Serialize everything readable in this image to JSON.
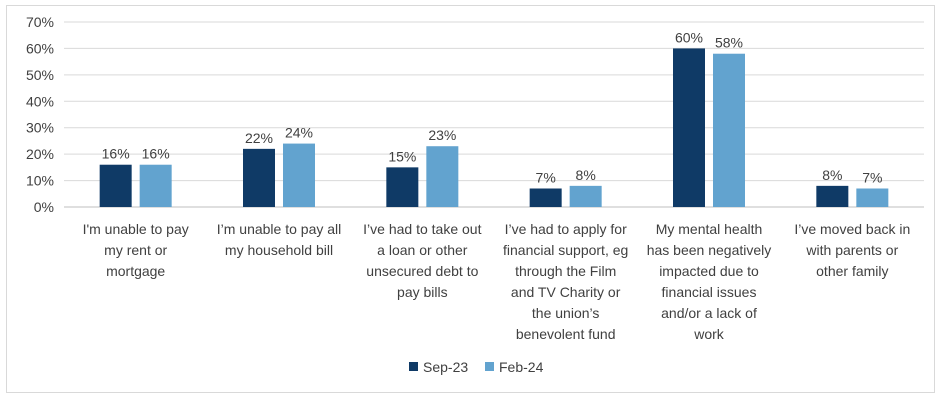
{
  "chart_data": {
    "type": "bar",
    "title": "",
    "xlabel": "",
    "ylabel": "",
    "ylim": [
      0,
      70
    ],
    "yticks": [
      "0%",
      "10%",
      "20%",
      "30%",
      "40%",
      "50%",
      "60%",
      "70%"
    ],
    "grid": true,
    "legend_position": "bottom",
    "categories": [
      [
        "I'm unable to pay",
        "my rent or",
        "mortgage"
      ],
      [
        "I’m unable to pay all",
        "my household bill"
      ],
      [
        "I’ve had to take out",
        "a loan or other",
        "unsecured debt to",
        "pay bills"
      ],
      [
        "I’ve had to apply for",
        "financial support, eg",
        "through the Film",
        "and TV Charity or",
        "the union’s",
        "benevolent fund"
      ],
      [
        "My mental health",
        "has been negatively",
        "impacted due to",
        "financial issues",
        "and/or a lack of",
        "work"
      ],
      [
        "I’ve moved back in",
        "with parents or",
        "other family"
      ]
    ],
    "series": [
      {
        "name": "Sep-23",
        "color": "#0f3a66",
        "values": [
          16,
          22,
          15,
          7,
          60,
          8
        ],
        "labels": [
          "16%",
          "22%",
          "15%",
          "7%",
          "60%",
          "8%"
        ]
      },
      {
        "name": "Feb-24",
        "color": "#62a3cf",
        "values": [
          16,
          24,
          23,
          8,
          58,
          7
        ],
        "labels": [
          "16%",
          "24%",
          "23%",
          "8%",
          "58%",
          "7%"
        ]
      }
    ]
  }
}
